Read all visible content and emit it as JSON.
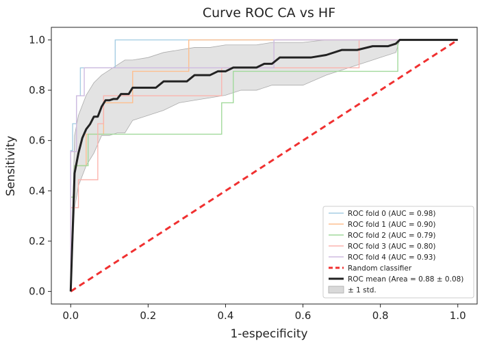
{
  "chart_data": {
    "type": "line",
    "title": "Curve ROC  CA vs HF",
    "xlabel": "1-especificity",
    "ylabel": "Sensitivity",
    "xlim": [
      -0.05,
      1.05
    ],
    "ylim": [
      -0.05,
      1.05
    ],
    "xticks": [
      0.0,
      0.2,
      0.4,
      0.6,
      0.8,
      1.0
    ],
    "yticks": [
      0.0,
      0.2,
      0.4,
      0.6,
      0.8,
      1.0
    ],
    "tick_labels": [
      "0.0",
      "0.2",
      "0.4",
      "0.6",
      "0.8",
      "1.0"
    ],
    "legend_position": "lower-right",
    "series": [
      {
        "name": "ROC fold 0 (AUC = 0.98)",
        "color": "#a6cee3",
        "style": "solid",
        "x": [
          0,
          0,
          0.005,
          0.005,
          0.015,
          0.015,
          0.025,
          0.025,
          0.04,
          0.04,
          0.115,
          0.115,
          1.0
        ],
        "y": [
          0,
          0.56,
          0.56,
          0.667,
          0.667,
          0.778,
          0.778,
          0.889,
          0.889,
          0.889,
          0.889,
          1.0,
          1.0
        ]
      },
      {
        "name": "ROC fold 1 (AUC = 0.90)",
        "color": "#fdbf8f",
        "style": "solid",
        "x": [
          0,
          0,
          0.01,
          0.01,
          0.04,
          0.04,
          0.085,
          0.085,
          0.16,
          0.16,
          0.235,
          0.235,
          0.305,
          0.305,
          1.0
        ],
        "y": [
          0,
          0.375,
          0.375,
          0.5,
          0.5,
          0.625,
          0.625,
          0.75,
          0.75,
          0.875,
          0.875,
          0.875,
          0.875,
          1.0,
          1.0
        ]
      },
      {
        "name": "ROC fold 2 (AUC = 0.79)",
        "color": "#a1d99b",
        "style": "solid",
        "x": [
          0,
          0,
          0.01,
          0.01,
          0.045,
          0.045,
          0.39,
          0.39,
          0.42,
          0.42,
          0.75,
          0.75,
          0.845,
          0.845,
          1.0
        ],
        "y": [
          0,
          0.375,
          0.375,
          0.5,
          0.5,
          0.625,
          0.625,
          0.75,
          0.75,
          0.875,
          0.875,
          0.875,
          0.875,
          1.0,
          1.0
        ]
      },
      {
        "name": "ROC fold 3 (AUC = 0.80)",
        "color": "#fbb4ae",
        "style": "solid",
        "x": [
          0,
          0,
          0.02,
          0.02,
          0.035,
          0.035,
          0.07,
          0.07,
          0.085,
          0.085,
          0.39,
          0.39,
          0.745,
          0.745,
          0.8,
          0.8,
          1.0
        ],
        "y": [
          0,
          0.333,
          0.333,
          0.444,
          0.444,
          0.444,
          0.444,
          0.667,
          0.667,
          0.778,
          0.778,
          0.889,
          0.889,
          1.0,
          1.0,
          1.0,
          1.0
        ]
      },
      {
        "name": "ROC fold 4 (AUC = 0.93)",
        "color": "#cfbbe0",
        "style": "solid",
        "x": [
          0,
          0,
          0.015,
          0.015,
          0.035,
          0.035,
          0.085,
          0.085,
          0.16,
          0.16,
          0.525,
          0.525,
          1.0
        ],
        "y": [
          0,
          0.556,
          0.556,
          0.778,
          0.778,
          0.889,
          0.889,
          0.889,
          0.889,
          0.889,
          0.889,
          1.0,
          1.0
        ]
      },
      {
        "name": "Random classifier",
        "color": "#f03030",
        "style": "dashed",
        "x": [
          0,
          1
        ],
        "y": [
          0,
          1
        ]
      },
      {
        "name": "ROC mean (Area = 0.88 ± 0.08)",
        "color": "#222222",
        "style": "solid-bold",
        "x": [
          0,
          0.01,
          0.02,
          0.03,
          0.04,
          0.05,
          0.06,
          0.07,
          0.08,
          0.09,
          0.1,
          0.11,
          0.12,
          0.13,
          0.14,
          0.15,
          0.16,
          0.2,
          0.22,
          0.24,
          0.26,
          0.28,
          0.3,
          0.32,
          0.34,
          0.36,
          0.38,
          0.4,
          0.42,
          0.44,
          0.48,
          0.5,
          0.52,
          0.54,
          0.56,
          0.58,
          0.62,
          0.66,
          0.7,
          0.74,
          0.78,
          0.8,
          0.82,
          0.84,
          0.85,
          1.0
        ],
        "y": [
          0,
          0.47,
          0.55,
          0.61,
          0.645,
          0.665,
          0.695,
          0.695,
          0.735,
          0.76,
          0.76,
          0.765,
          0.765,
          0.785,
          0.785,
          0.785,
          0.81,
          0.81,
          0.81,
          0.835,
          0.835,
          0.835,
          0.835,
          0.86,
          0.86,
          0.86,
          0.875,
          0.875,
          0.89,
          0.89,
          0.89,
          0.905,
          0.905,
          0.93,
          0.93,
          0.93,
          0.93,
          0.94,
          0.96,
          0.96,
          0.975,
          0.975,
          0.975,
          0.985,
          1.0,
          1.0
        ]
      },
      {
        "name": "± 1 std.",
        "color": "#bbbbbb",
        "style": "band",
        "x": [
          0,
          0.01,
          0.02,
          0.04,
          0.06,
          0.08,
          0.1,
          0.12,
          0.14,
          0.16,
          0.2,
          0.24,
          0.28,
          0.32,
          0.36,
          0.4,
          0.44,
          0.48,
          0.52,
          0.56,
          0.6,
          0.66,
          0.7,
          0.74,
          0.78,
          0.8,
          0.84,
          0.85,
          1.0
        ],
        "lower": [
          0,
          0.33,
          0.42,
          0.5,
          0.55,
          0.62,
          0.62,
          0.63,
          0.63,
          0.68,
          0.7,
          0.72,
          0.75,
          0.76,
          0.77,
          0.78,
          0.8,
          0.8,
          0.82,
          0.82,
          0.82,
          0.86,
          0.88,
          0.9,
          0.92,
          0.93,
          0.95,
          1.0,
          1.0
        ],
        "upper": [
          0,
          0.62,
          0.7,
          0.78,
          0.83,
          0.86,
          0.88,
          0.9,
          0.92,
          0.92,
          0.93,
          0.95,
          0.96,
          0.97,
          0.97,
          0.98,
          0.98,
          0.98,
          0.99,
          0.99,
          0.99,
          1.0,
          1.0,
          1.0,
          1.0,
          1.0,
          1.0,
          1.0,
          1.0
        ]
      }
    ]
  }
}
